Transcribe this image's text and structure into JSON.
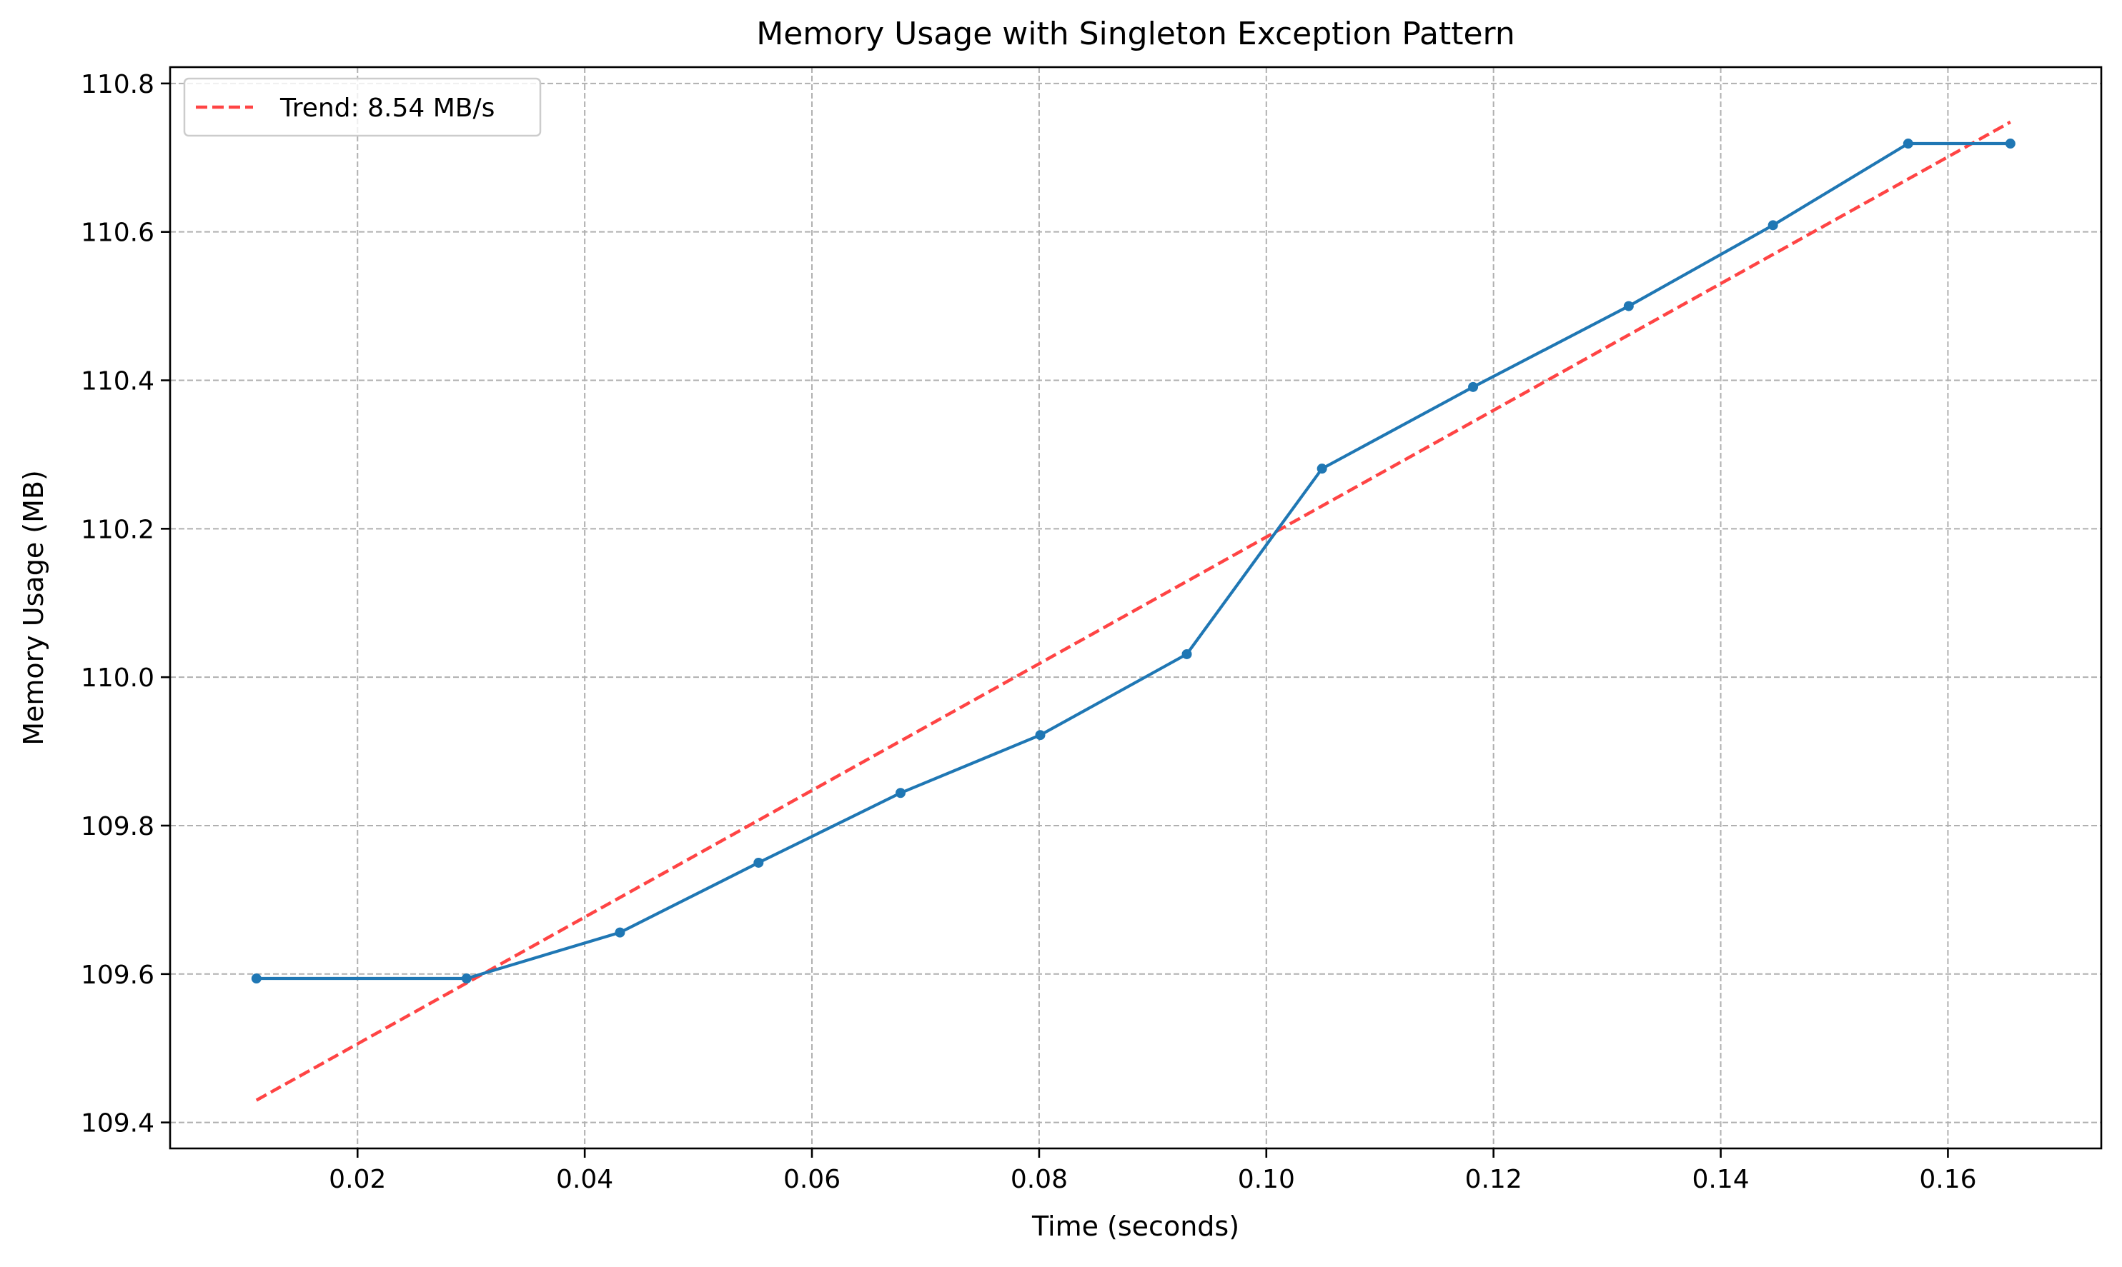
{
  "chart_data": {
    "type": "line",
    "title": "Memory Usage with Singleton Exception Pattern",
    "xlabel": "Time (seconds)",
    "ylabel": "Memory Usage (MB)",
    "xlim": [
      0.0035,
      0.1735
    ],
    "ylim": [
      109.365,
      110.822
    ],
    "xticks": [
      0.02,
      0.04,
      0.06,
      0.08,
      0.1,
      0.12,
      0.14,
      0.16
    ],
    "xtick_labels": [
      "0.02",
      "0.04",
      "0.06",
      "0.08",
      "0.10",
      "0.12",
      "0.14",
      "0.16"
    ],
    "yticks": [
      109.4,
      109.6,
      109.8,
      110.0,
      110.2,
      110.4,
      110.6,
      110.8
    ],
    "ytick_labels": [
      "109.4",
      "109.6",
      "109.8",
      "110.0",
      "110.2",
      "110.4",
      "110.6",
      "110.8"
    ],
    "grid": true,
    "legend_position": "top-left",
    "series": [
      {
        "color": "#1f77b4",
        "style": "solid-with-markers",
        "x": [
          0.0111,
          0.0296,
          0.0431,
          0.0553,
          0.0678,
          0.0801,
          0.093,
          0.1049,
          0.1182,
          0.1319,
          0.1446,
          0.1565,
          0.1655
        ],
        "y": [
          109.594,
          109.594,
          109.656,
          109.75,
          109.844,
          109.922,
          110.031,
          110.281,
          110.391,
          110.5,
          110.609,
          110.719,
          110.719
        ]
      },
      {
        "name": "Trend: 8.54 MB/s",
        "color": "#ff4444",
        "style": "dashed",
        "x": [
          0.0111,
          0.1655
        ],
        "y": [
          109.43,
          110.748
        ]
      }
    ]
  }
}
